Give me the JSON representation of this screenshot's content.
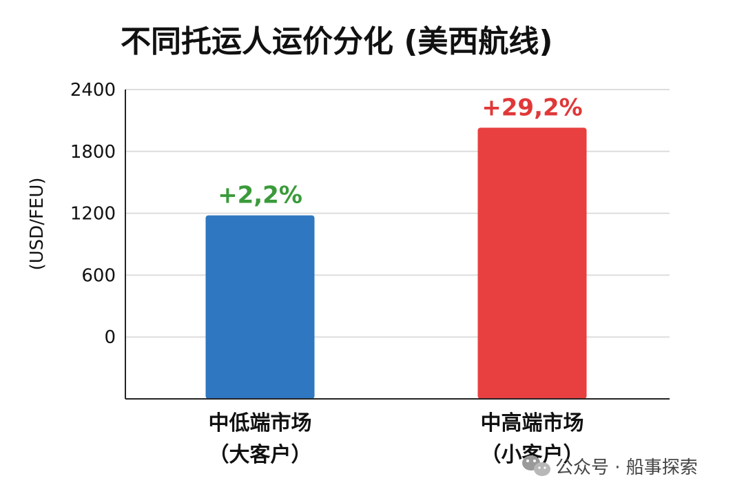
{
  "chart_data": {
    "type": "bar",
    "title": "不同托运人运价分化 (美西航线)",
    "ylabel": "(USD/FEU)",
    "xlabel": "",
    "ylim": [
      -600,
      2400
    ],
    "yticks": [
      "0",
      "600",
      "1200",
      "1800",
      "2400"
    ],
    "ytick_values": [
      0,
      600,
      1200,
      1800,
      2400
    ],
    "grid": true,
    "categories": [
      {
        "line1": "中低端市场",
        "line2": "（大客户）"
      },
      {
        "line1": "中高端市场",
        "line2": "（小客户）"
      }
    ],
    "values": [
      1180,
      2030
    ],
    "labels": [
      "+2,2%",
      "+29,2%"
    ],
    "colors": [
      "#2f77c0",
      "#e84040"
    ],
    "label_colors": [
      "#3a9a3a",
      "#e03838"
    ]
  },
  "watermark": {
    "text": "公众号 · 船事探索",
    "icon": "wechat-icon"
  }
}
